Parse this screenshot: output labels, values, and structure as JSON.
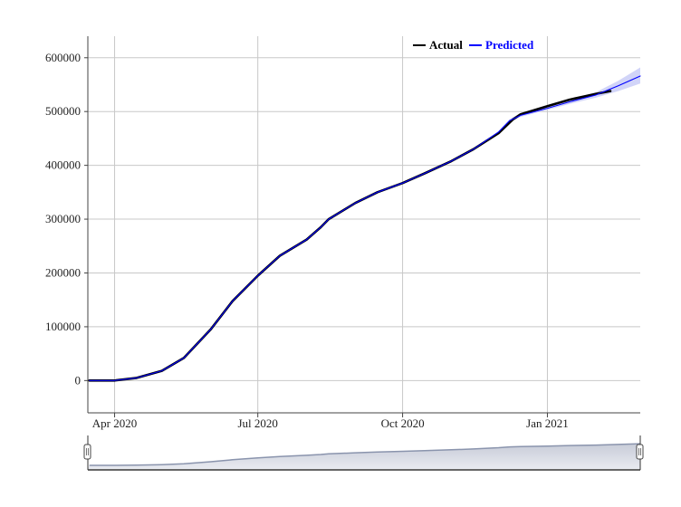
{
  "chart_data": {
    "type": "line",
    "title": "",
    "xlabel": "",
    "ylabel": "",
    "x_tick_labels": [
      "Apr 2020",
      "Jul 2020",
      "Oct 2020",
      "Jan 2021"
    ],
    "x_tick_dates": [
      "2020-04-01",
      "2020-07-01",
      "2020-10-01",
      "2021-01-01"
    ],
    "xlim": [
      "2020-03-15",
      "2021-03-01"
    ],
    "ylim": [
      -60000,
      640000
    ],
    "y_ticks": [
      0,
      100000,
      200000,
      300000,
      400000,
      500000,
      600000
    ],
    "y_tick_labels": [
      "0",
      "100000",
      "200000",
      "300000",
      "400000",
      "500000",
      "600000"
    ],
    "grid": true,
    "legend_position": "top-right",
    "range_selector": true,
    "series": [
      {
        "name": "Actual",
        "color": "#000000",
        "x": [
          "2020-03-16",
          "2020-04-01",
          "2020-04-15",
          "2020-05-01",
          "2020-05-15",
          "2020-06-01",
          "2020-06-15",
          "2020-07-01",
          "2020-07-15",
          "2020-08-01",
          "2020-08-10",
          "2020-08-15",
          "2020-09-01",
          "2020-09-15",
          "2020-10-01",
          "2020-10-15",
          "2020-11-01",
          "2020-11-15",
          "2020-12-01",
          "2020-12-10",
          "2020-12-15",
          "2021-01-01",
          "2021-01-15",
          "2021-02-01",
          "2021-02-10"
        ],
        "y": [
          0,
          0,
          5000,
          18000,
          42000,
          95000,
          148000,
          195000,
          232000,
          262000,
          285000,
          300000,
          330000,
          350000,
          367000,
          385000,
          408000,
          430000,
          460000,
          485000,
          495000,
          510000,
          522000,
          533000,
          538000
        ]
      },
      {
        "name": "Predicted",
        "color": "#0000ff",
        "band_color": "#c9cdf7",
        "x": [
          "2020-03-16",
          "2020-04-01",
          "2020-04-15",
          "2020-05-01",
          "2020-05-15",
          "2020-06-01",
          "2020-06-15",
          "2020-07-01",
          "2020-07-15",
          "2020-08-01",
          "2020-08-10",
          "2020-08-15",
          "2020-09-01",
          "2020-09-15",
          "2020-10-01",
          "2020-10-15",
          "2020-11-01",
          "2020-11-15",
          "2020-12-01",
          "2020-12-08",
          "2020-12-15",
          "2021-01-01",
          "2021-01-15",
          "2021-02-01",
          "2021-02-15",
          "2021-03-01"
        ],
        "y": [
          0,
          0,
          5000,
          18000,
          42000,
          95000,
          148000,
          195000,
          232000,
          262000,
          285000,
          300000,
          330000,
          350000,
          367000,
          385000,
          408000,
          430000,
          462000,
          483000,
          493000,
          506000,
          518000,
          531000,
          548000,
          566000
        ],
        "lower": [
          0,
          0,
          5000,
          18000,
          42000,
          95000,
          148000,
          195000,
          232000,
          262000,
          285000,
          300000,
          330000,
          350000,
          367000,
          385000,
          408000,
          430000,
          460000,
          480000,
          490000,
          503000,
          514000,
          526000,
          538000,
          552000
        ],
        "upper": [
          0,
          0,
          5000,
          18000,
          42000,
          95000,
          148000,
          195000,
          232000,
          262000,
          285000,
          300000,
          330000,
          350000,
          367000,
          385000,
          408000,
          430000,
          464000,
          486000,
          496000,
          509000,
          522000,
          536000,
          557000,
          582000
        ]
      }
    ]
  }
}
